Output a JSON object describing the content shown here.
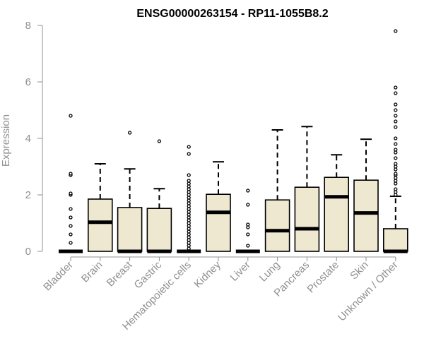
{
  "chart_data": {
    "type": "box",
    "title": "ENSG00000263154 - RP11-1055B8.2",
    "ylabel": "Expression",
    "xlabel": "",
    "ylim": [
      0,
      8
    ],
    "yticks": [
      0,
      2,
      4,
      6,
      8
    ],
    "colors": {
      "box_fill": "#efe8d0",
      "box_stroke": "#000000",
      "axis": "#909090",
      "tick_text": "#909090"
    },
    "categories": [
      "Bladder",
      "Brain",
      "Breast",
      "Gastric",
      "Hematopoietic cells",
      "Kidney",
      "Liver",
      "Lung",
      "Pancreas",
      "Prostate",
      "Skin",
      "Unknown / Other"
    ],
    "boxes": [
      {
        "q1": 0,
        "median": 0,
        "q3": 0,
        "whisker_low": 0,
        "whisker_high": 0,
        "outliers": [
          0.3,
          0.6,
          0.9,
          1.2,
          1.5,
          2.0,
          2.05,
          2.7,
          2.75,
          4.8
        ]
      },
      {
        "q1": 0,
        "median": 1.03,
        "q3": 1.85,
        "whisker_low": 0,
        "whisker_high": 3.1,
        "outliers": []
      },
      {
        "q1": 0,
        "median": 0,
        "q3": 1.55,
        "whisker_low": 0,
        "whisker_high": 2.92,
        "outliers": [
          4.2
        ]
      },
      {
        "q1": 0,
        "median": 0,
        "q3": 1.52,
        "whisker_low": 0,
        "whisker_high": 2.22,
        "outliers": [
          3.9
        ]
      },
      {
        "q1": 0,
        "median": 0,
        "q3": 0,
        "whisker_low": 0,
        "whisker_high": 0,
        "outliers": [
          0.1,
          0.2,
          0.3,
          0.4,
          0.5,
          0.6,
          0.7,
          0.8,
          0.9,
          1.0,
          1.1,
          1.2,
          1.3,
          1.4,
          1.5,
          1.6,
          1.7,
          1.8,
          1.9,
          2.0,
          2.1,
          2.2,
          2.3,
          2.4,
          2.5,
          2.7,
          3.45,
          3.7
        ]
      },
      {
        "q1": 0,
        "median": 1.38,
        "q3": 2.02,
        "whisker_low": 0,
        "whisker_high": 3.17,
        "outliers": []
      },
      {
        "q1": 0,
        "median": 0,
        "q3": 0,
        "whisker_low": 0,
        "whisker_high": 0,
        "outliers": [
          0.2,
          0.6,
          0.85,
          0.95,
          1.65,
          2.15
        ]
      },
      {
        "q1": 0,
        "median": 0.73,
        "q3": 1.82,
        "whisker_low": 0,
        "whisker_high": 4.3,
        "outliers": []
      },
      {
        "q1": 0,
        "median": 0.8,
        "q3": 2.27,
        "whisker_low": 0,
        "whisker_high": 4.42,
        "outliers": []
      },
      {
        "q1": 0,
        "median": 1.93,
        "q3": 2.62,
        "whisker_low": 0,
        "whisker_high": 3.42,
        "outliers": []
      },
      {
        "q1": 0,
        "median": 1.36,
        "q3": 2.52,
        "whisker_low": 0,
        "whisker_high": 3.97,
        "outliers": []
      },
      {
        "q1": 0,
        "median": 0,
        "q3": 0.8,
        "whisker_low": 0,
        "whisker_high": 1.95,
        "outliers": [
          2.0,
          2.1,
          2.2,
          2.4,
          2.5,
          2.6,
          2.7,
          2.75,
          2.9,
          3.0,
          3.1,
          3.3,
          3.5,
          3.6,
          3.8,
          4.0,
          4.4,
          4.6,
          4.8,
          5.0,
          5.2,
          5.6,
          5.8,
          7.8
        ]
      }
    ]
  }
}
